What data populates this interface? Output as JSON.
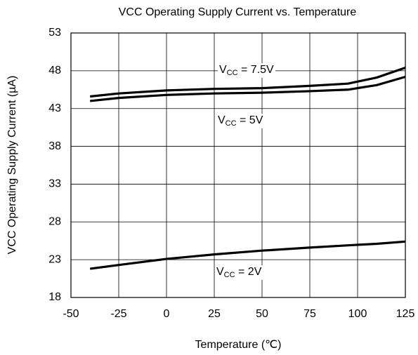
{
  "chart_data": {
    "type": "line",
    "title": "VCC Operating Supply Current vs. Temperature",
    "x_label": "Temperature (℃)",
    "y_label": "VCC Operating Supply Current (µA)",
    "x": [
      -40,
      -25,
      0,
      25,
      50,
      75,
      95,
      110,
      125
    ],
    "series": [
      {
        "label": [
          "V",
          "CC",
          " = 7.5V"
        ],
        "color": "#000000",
        "values": [
          44.6,
          45.0,
          45.4,
          45.6,
          45.7,
          46.0,
          46.3,
          47.1,
          48.4
        ]
      },
      {
        "label": [
          "V",
          "CC",
          " = 5V"
        ],
        "color": "#000000",
        "values": [
          44.0,
          44.4,
          44.8,
          45.0,
          45.1,
          45.3,
          45.5,
          46.1,
          47.2
        ]
      },
      {
        "label": [
          "V",
          "CC",
          " = 2V"
        ],
        "color": "#000000",
        "values": [
          21.8,
          22.3,
          23.1,
          23.7,
          24.2,
          24.6,
          24.9,
          25.1,
          25.4
        ]
      }
    ],
    "xlim": [
      -50,
      125
    ],
    "xticks": [
      -50,
      -25,
      0,
      25,
      50,
      75,
      100,
      125
    ],
    "ylim": [
      18,
      53
    ],
    "yticks": [
      18,
      23,
      28,
      33,
      38,
      43,
      48,
      53
    ],
    "grid": true
  }
}
